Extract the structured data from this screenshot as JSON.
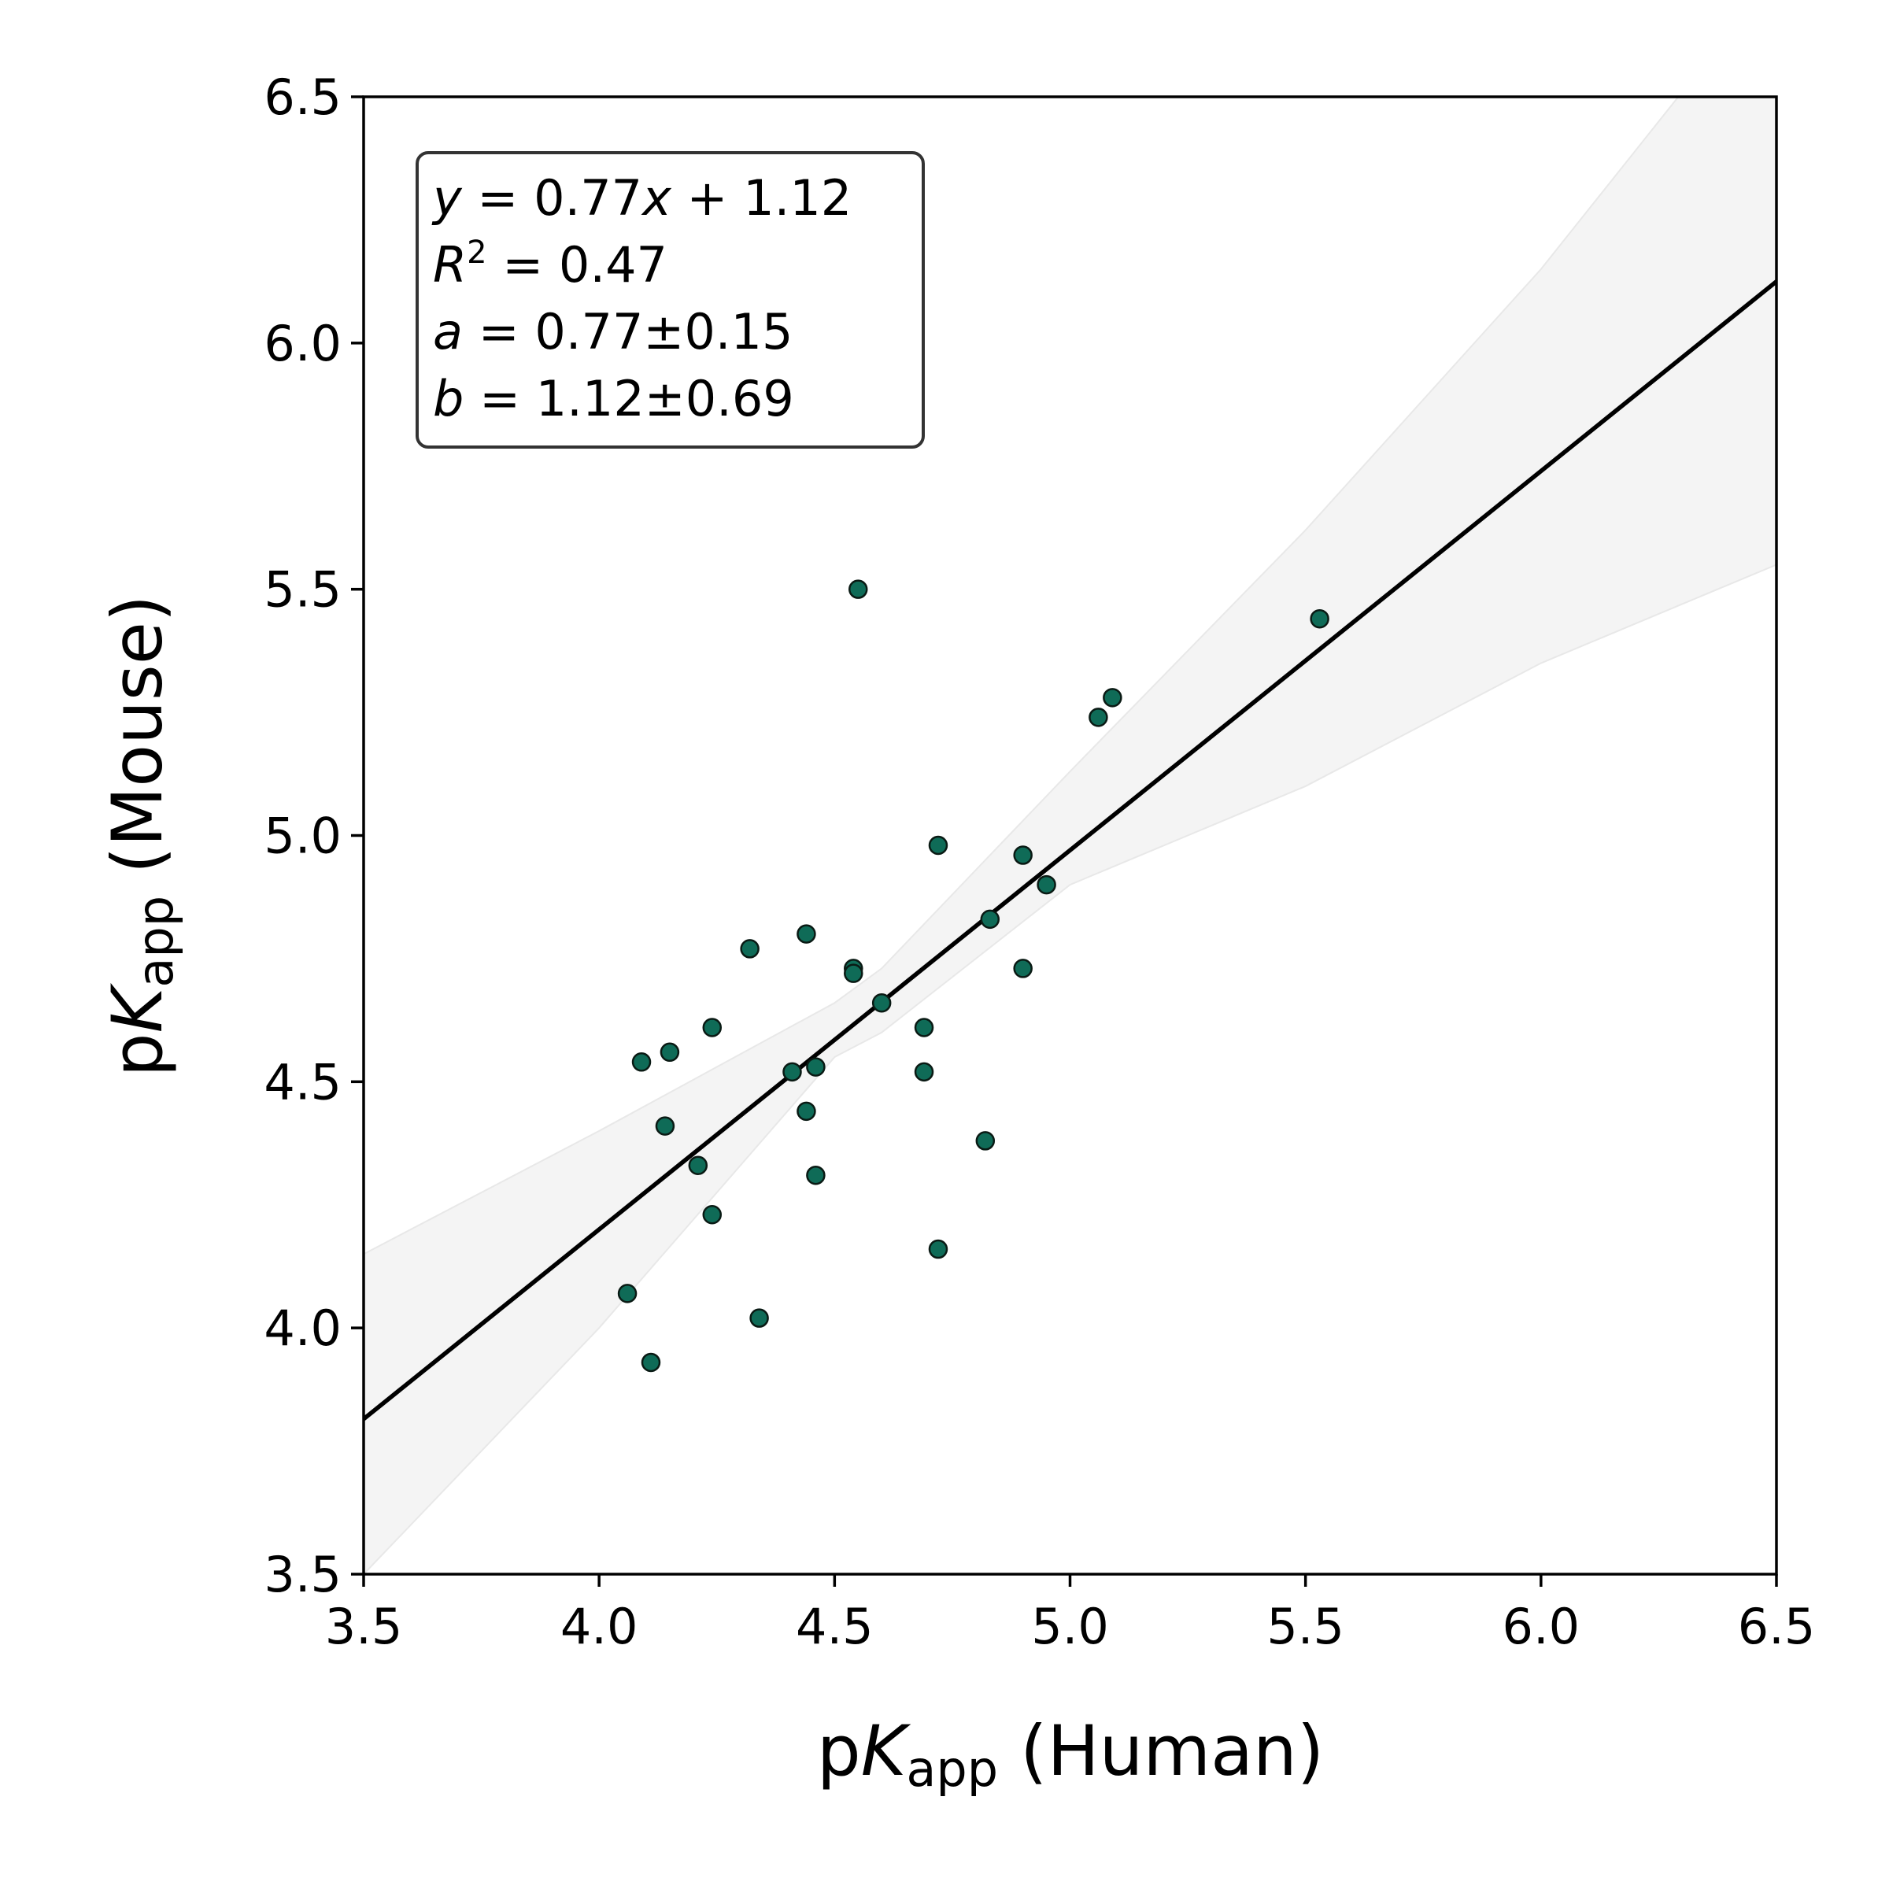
{
  "chart_data": {
    "type": "scatter",
    "xlabel": {
      "prefix": "p",
      "italic": "K",
      "sub": "app",
      "suffix": " (Human)"
    },
    "ylabel": {
      "prefix": "p",
      "italic": "K",
      "sub": "app",
      "suffix": " (Mouse)"
    },
    "xlim": [
      3.5,
      6.5
    ],
    "ylim": [
      3.5,
      6.5
    ],
    "xticks": [
      "3.5",
      "4.0",
      "4.5",
      "5.0",
      "5.5",
      "6.0",
      "6.5"
    ],
    "yticks": [
      "3.5",
      "4.0",
      "4.5",
      "5.0",
      "5.5",
      "6.0",
      "6.5"
    ],
    "grid": false,
    "point_color": "#0f6b57",
    "point_edge_color": "#0a1a14",
    "fit_line": {
      "slope": 0.77,
      "intercept": 1.12,
      "color": "#000000"
    },
    "confidence_band": {
      "color": "#f4f4f4",
      "x": [
        3.5,
        4.0,
        4.5,
        4.6,
        5.0,
        5.5,
        6.0,
        6.5
      ],
      "upper": [
        4.15,
        4.4,
        4.66,
        4.73,
        5.13,
        5.62,
        6.15,
        6.75
      ],
      "lower": [
        3.5,
        4.0,
        4.55,
        4.6,
        4.9,
        5.1,
        5.35,
        5.55
      ]
    },
    "annotation": {
      "lines": [
        [
          "y",
          " = 0.77",
          "x",
          " + 1.12"
        ],
        [
          "R",
          "2",
          " = 0.47"
        ],
        [
          "a",
          " = 0.77±0.15"
        ],
        [
          "b",
          " = 1.12±0.69"
        ]
      ]
    },
    "points": [
      [
        4.55,
        5.5
      ],
      [
        5.53,
        5.44
      ],
      [
        5.09,
        5.28
      ],
      [
        5.06,
        5.24
      ],
      [
        4.72,
        4.98
      ],
      [
        4.9,
        4.96
      ],
      [
        4.95,
        4.9
      ],
      [
        4.83,
        4.83
      ],
      [
        4.44,
        4.8
      ],
      [
        4.32,
        4.77
      ],
      [
        4.54,
        4.73
      ],
      [
        4.9,
        4.73
      ],
      [
        4.54,
        4.72
      ],
      [
        4.6,
        4.66
      ],
      [
        4.69,
        4.61
      ],
      [
        4.24,
        4.61
      ],
      [
        4.15,
        4.56
      ],
      [
        4.09,
        4.54
      ],
      [
        4.46,
        4.53
      ],
      [
        4.69,
        4.52
      ],
      [
        4.41,
        4.52
      ],
      [
        4.44,
        4.44
      ],
      [
        4.14,
        4.41
      ],
      [
        4.82,
        4.38
      ],
      [
        4.21,
        4.33
      ],
      [
        4.46,
        4.31
      ],
      [
        4.24,
        4.23
      ],
      [
        4.72,
        4.16
      ],
      [
        4.06,
        4.07
      ],
      [
        4.34,
        4.02
      ],
      [
        4.11,
        3.93
      ]
    ]
  }
}
